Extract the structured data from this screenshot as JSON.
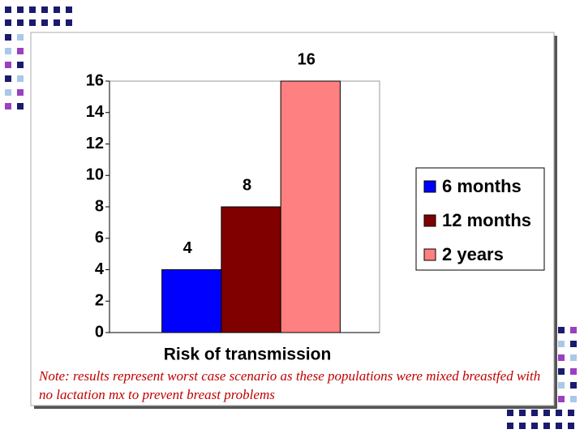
{
  "chart_data": {
    "type": "bar",
    "categories": [
      null
    ],
    "x_label": "Risk of transmission",
    "series": [
      {
        "name": "6 months",
        "color": "#0000ff",
        "values": [
          4
        ]
      },
      {
        "name": "12 months",
        "color": "#800000",
        "values": [
          8
        ]
      },
      {
        "name": "2 years",
        "color": "#ff8080",
        "values": [
          16
        ]
      }
    ],
    "ylim": [
      0,
      16
    ],
    "yticks": [
      0,
      2,
      4,
      6,
      8,
      10,
      12,
      14,
      16
    ],
    "legend": "right",
    "annotation": "Note: results represent worst case scenario as these populations were mixed breastfed with no lactation mx to prevent breast problems"
  }
}
